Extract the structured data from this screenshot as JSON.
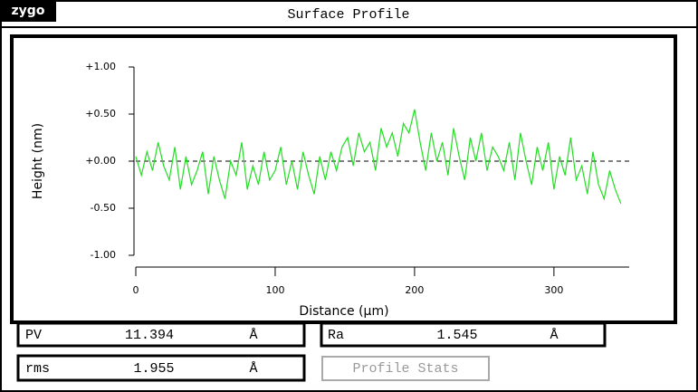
{
  "header": {
    "logo": "zygo",
    "title": "Surface Profile"
  },
  "chart_data": {
    "type": "line",
    "y_label": "Height (nm)",
    "x_label": "Distance (µm)",
    "xlim": [
      0,
      354
    ],
    "ylim": [
      -1,
      1
    ],
    "xticks": [
      0,
      100,
      200,
      300
    ],
    "yticks": [
      {
        "value": 1,
        "label": "+1.00"
      },
      {
        "value": 0.5,
        "label": "+0.50"
      },
      {
        "value": 0,
        "label": "+0.00"
      },
      {
        "value": -0.5,
        "label": "-0.50"
      },
      {
        "value": -1,
        "label": "-1.00"
      }
    ],
    "x": [
      0,
      4,
      8,
      12,
      16,
      20,
      24,
      28,
      32,
      36,
      40,
      44,
      48,
      52,
      56,
      60,
      64,
      68,
      72,
      76,
      80,
      84,
      88,
      92,
      96,
      100,
      104,
      108,
      112,
      116,
      120,
      124,
      128,
      132,
      136,
      140,
      144,
      148,
      152,
      156,
      160,
      164,
      168,
      172,
      176,
      180,
      184,
      188,
      192,
      196,
      200,
      204,
      208,
      212,
      216,
      220,
      224,
      228,
      232,
      236,
      240,
      244,
      248,
      252,
      256,
      260,
      264,
      268,
      272,
      276,
      280,
      284,
      288,
      292,
      296,
      300,
      304,
      308,
      312,
      316,
      320,
      324,
      328,
      332,
      336,
      340,
      344,
      348
    ],
    "series": [
      {
        "color": "#22dd22",
        "values": [
          0.05,
          -0.15,
          0.1,
          -0.1,
          0.2,
          -0.05,
          -0.2,
          0.15,
          -0.3,
          0.05,
          -0.25,
          -0.1,
          0.1,
          -0.35,
          0.05,
          -0.2,
          -0.4,
          0.0,
          -0.15,
          0.2,
          -0.3,
          -0.05,
          -0.25,
          0.1,
          -0.2,
          -0.1,
          0.15,
          -0.25,
          0.0,
          -0.3,
          0.1,
          -0.15,
          -0.35,
          0.05,
          -0.2,
          0.1,
          -0.1,
          0.15,
          0.25,
          -0.05,
          0.3,
          0.1,
          0.2,
          -0.1,
          0.35,
          0.15,
          0.3,
          0.05,
          0.4,
          0.3,
          0.55,
          0.2,
          -0.1,
          0.3,
          0.0,
          0.2,
          -0.15,
          0.35,
          0.05,
          -0.2,
          0.25,
          0.0,
          0.3,
          -0.1,
          0.15,
          0.05,
          -0.1,
          0.2,
          -0.2,
          0.3,
          0.0,
          -0.25,
          0.15,
          -0.1,
          0.2,
          -0.3,
          0.05,
          -0.15,
          0.25,
          -0.2,
          -0.05,
          -0.35,
          0.1,
          -0.25,
          -0.4,
          -0.1,
          -0.3,
          -0.45
        ]
      }
    ]
  },
  "stats": [
    {
      "label": "PV",
      "value": "11.394",
      "unit": "Å"
    },
    {
      "label": "Ra",
      "value": "1.545",
      "unit": "Å"
    },
    {
      "label": "rms",
      "value": "1.955",
      "unit": "Å"
    }
  ],
  "button": "Profile Stats"
}
